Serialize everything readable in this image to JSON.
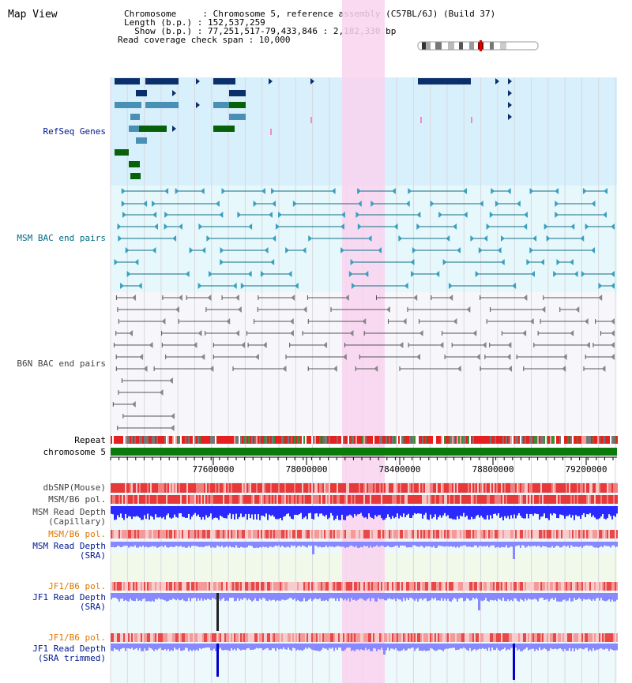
{
  "page": {
    "title": "Map View"
  },
  "header": {
    "lines": [
      "Chromosome     : Chromosome 5, reference assembly (C57BL/6J) (Build 37)",
      "Length (b.p.) : 152,537,259",
      "  Show (b.p.) : 77,251,517-79,433,846 : 2,182,330 bp",
      "Read coverage check span : 10,000"
    ]
  },
  "tracks": [
    {
      "label": "RefSeq Genes",
      "color": "#00188f"
    },
    {
      "label": "MSM BAC end pairs",
      "color": "#006a85"
    },
    {
      "label": "B6N BAC end pairs",
      "color": "#444444"
    },
    {
      "label": "Repeat",
      "color": "#000000"
    },
    {
      "label": "chromosome 5",
      "color": "#000000"
    },
    {
      "label": "dbSNP(Mouse)",
      "color": "#444444"
    },
    {
      "label": "MSM/B6 pol.",
      "color": "#444444"
    },
    {
      "label": "MSM Read Depth\n(Capillary)",
      "color": "#444444"
    },
    {
      "label": "MSM/B6 pol.",
      "color": "#e07800"
    },
    {
      "label": "MSM Read Depth\n(SRA)",
      "color": "#00188f"
    },
    {
      "label": "JF1/B6 pol.",
      "color": "#e07800"
    },
    {
      "label": "JF1 Read Depth\n(SRA)",
      "color": "#00188f"
    },
    {
      "label": "JF1/B6 pol.",
      "color": "#e07800"
    },
    {
      "label": "JF1 Read Depth\n(SRA trimmed)",
      "color": "#00188f"
    }
  ],
  "axis": {
    "ticks": [
      "77600000",
      "78000000",
      "78400000",
      "78800000",
      "79200000"
    ]
  },
  "colors": {
    "highlight": "#f9d3ef",
    "refseq_bg": "#d8f0fb",
    "bac_bg": "#e6f8fb",
    "gene_dark": "#0b2f6a",
    "gene_mid": "#4a8fb5",
    "gene_green": "#086008",
    "chromosome": "#0a7a0a",
    "depth_blue": "#2a2aff",
    "depth_light": "#8888ff"
  }
}
